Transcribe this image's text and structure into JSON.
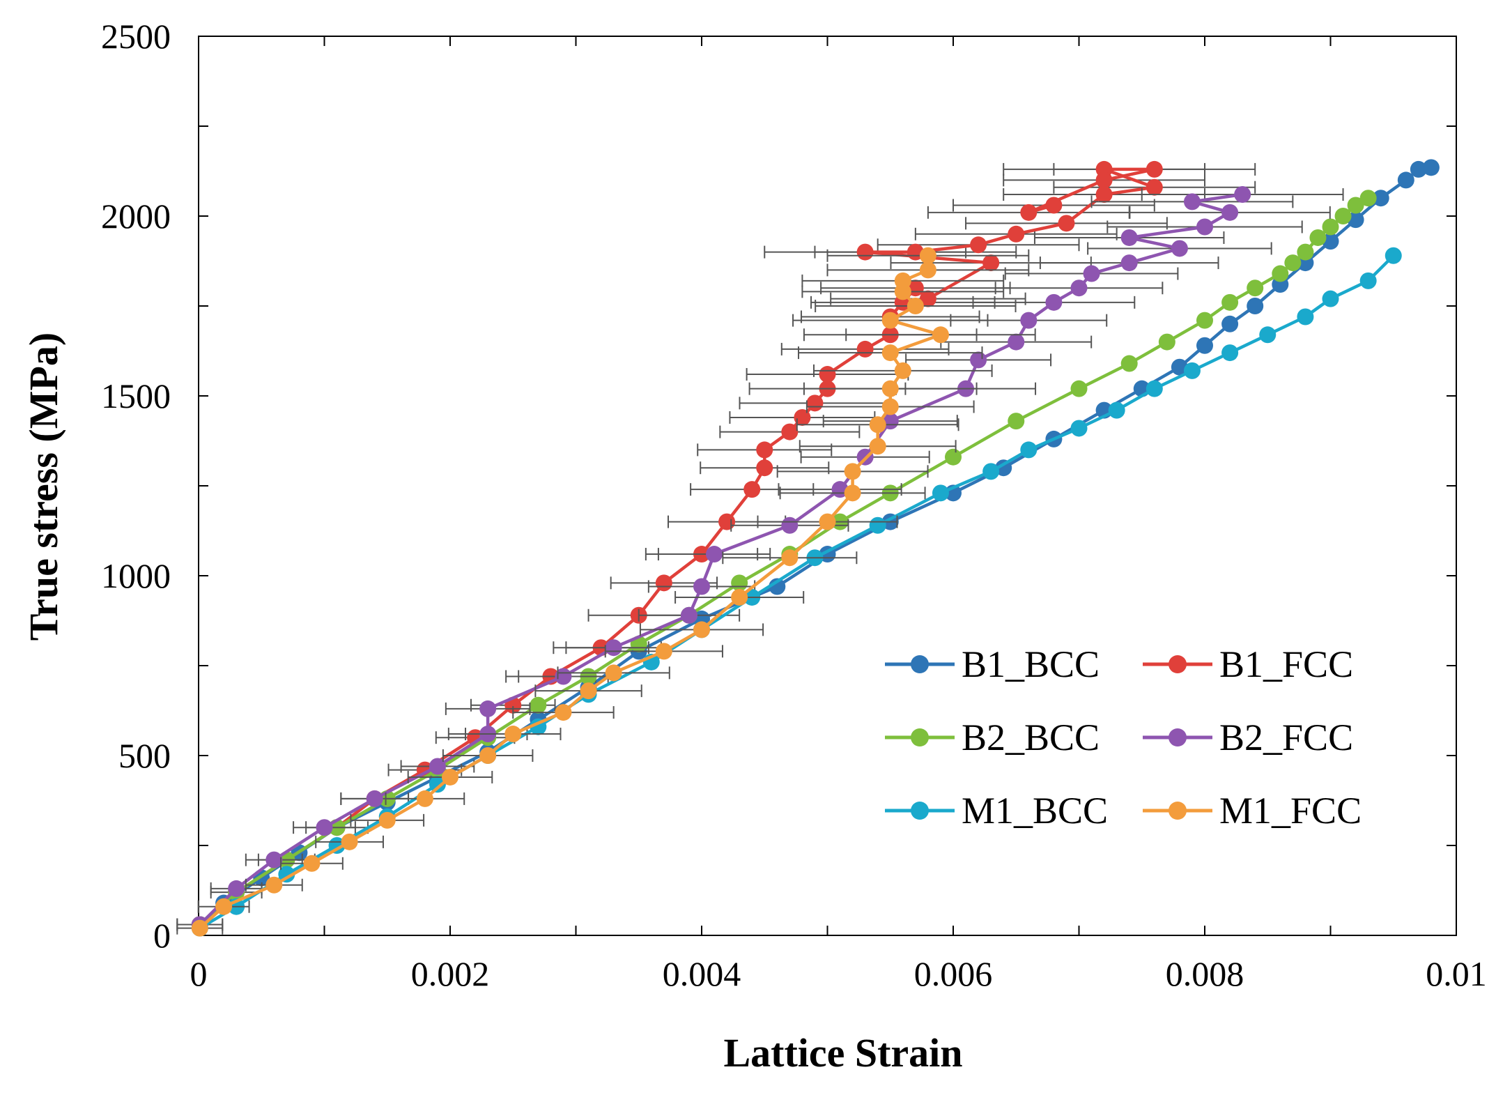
{
  "chart_data": {
    "type": "scatter",
    "title": "",
    "xlabel": "Lattice Strain",
    "ylabel": "True stress (MPa)",
    "xlim": [
      0,
      0.01
    ],
    "ylim": [
      0,
      2500
    ],
    "xticks": [
      0,
      0.002,
      0.004,
      0.006,
      0.008,
      0.01
    ],
    "xtick_labels": [
      "0",
      "0.002",
      "0.004",
      "0.006",
      "0.008",
      "0.01"
    ],
    "yticks": [
      0,
      500,
      1000,
      1500,
      2000,
      2500
    ],
    "ytick_labels": [
      "0",
      "500",
      "1000",
      "1500",
      "2000",
      "2500"
    ],
    "grid": false,
    "legend_position": "center-right",
    "series": [
      {
        "name": "B1_BCC",
        "color": "#2E75B6",
        "error_bars": false,
        "x": [
          1e-05,
          0.0002,
          0.0005,
          0.0008,
          0.0011,
          0.0015,
          0.0019,
          0.0023,
          0.0027,
          0.0031,
          0.0035,
          0.004,
          0.0046,
          0.005,
          0.0055,
          0.006,
          0.0064,
          0.0068,
          0.0072,
          0.0075,
          0.0078,
          0.008,
          0.0082,
          0.0084,
          0.0086,
          0.0088,
          0.009,
          0.0092,
          0.0094,
          0.0096,
          0.0097,
          0.0098
        ],
        "y": [
          30,
          90,
          160,
          230,
          300,
          370,
          440,
          510,
          600,
          690,
          790,
          880,
          970,
          1060,
          1150,
          1230,
          1300,
          1380,
          1460,
          1520,
          1580,
          1640,
          1700,
          1750,
          1810,
          1870,
          1930,
          1990,
          2050,
          2100,
          2130,
          2135
        ]
      },
      {
        "name": "B1_FCC",
        "color": "#E0403A",
        "error_bars": true,
        "x": [
          1e-05,
          0.0003,
          0.0007,
          0.0011,
          0.0014,
          0.0018,
          0.0022,
          0.0025,
          0.0028,
          0.0032,
          0.0035,
          0.0037,
          0.004,
          0.0042,
          0.0044,
          0.0045,
          0.0045,
          0.0047,
          0.0048,
          0.0049,
          0.005,
          0.005,
          0.0053,
          0.0055,
          0.0055,
          0.0056,
          0.0057,
          0.0058,
          0.0063,
          0.0053,
          0.0057,
          0.0062,
          0.0065,
          0.0069,
          0.0072,
          0.0076,
          0.0072,
          0.0076,
          0.0072,
          0.0066,
          0.0068
        ],
        "y": [
          30,
          120,
          210,
          300,
          380,
          460,
          550,
          640,
          720,
          800,
          890,
          980,
          1060,
          1150,
          1240,
          1300,
          1350,
          1400,
          1440,
          1480,
          1520,
          1560,
          1630,
          1670,
          1720,
          1760,
          1800,
          1770,
          1870,
          1900,
          1900,
          1920,
          1950,
          1980,
          2060,
          2080,
          2130,
          2130,
          2100,
          2010,
          2030
        ]
      },
      {
        "name": "B2_BCC",
        "color": "#7EBF3C",
        "error_bars": false,
        "x": [
          1e-05,
          0.0003,
          0.0007,
          0.0011,
          0.0015,
          0.0019,
          0.0023,
          0.0027,
          0.0031,
          0.0035,
          0.0039,
          0.0043,
          0.0047,
          0.0051,
          0.0055,
          0.006,
          0.0065,
          0.007,
          0.0074,
          0.0077,
          0.008,
          0.0082,
          0.0084,
          0.0086,
          0.0087,
          0.0088,
          0.0089,
          0.009,
          0.0091,
          0.0092,
          0.0093
        ],
        "y": [
          30,
          120,
          210,
          300,
          380,
          460,
          550,
          640,
          720,
          810,
          890,
          980,
          1060,
          1150,
          1230,
          1330,
          1430,
          1520,
          1590,
          1650,
          1710,
          1760,
          1800,
          1840,
          1870,
          1900,
          1940,
          1970,
          2000,
          2030,
          2050
        ]
      },
      {
        "name": "B2_FCC",
        "color": "#8E55B0",
        "error_bars": true,
        "x": [
          1e-05,
          0.0003,
          0.0006,
          0.001,
          0.0014,
          0.0019,
          0.0023,
          0.0023,
          0.0029,
          0.0033,
          0.0039,
          0.004,
          0.0041,
          0.0047,
          0.0051,
          0.0053,
          0.0055,
          0.0061,
          0.0062,
          0.0065,
          0.0066,
          0.0068,
          0.007,
          0.0071,
          0.0074,
          0.0078,
          0.0074,
          0.008,
          0.0082,
          0.0079,
          0.0083
        ],
        "y": [
          30,
          130,
          210,
          300,
          380,
          470,
          560,
          630,
          720,
          800,
          890,
          970,
          1060,
          1140,
          1240,
          1330,
          1430,
          1520,
          1600,
          1650,
          1710,
          1760,
          1800,
          1840,
          1870,
          1910,
          1940,
          1970,
          2010,
          2040,
          2060
        ]
      },
      {
        "name": "M1_BCC",
        "color": "#1AA9CC",
        "error_bars": false,
        "x": [
          1e-05,
          0.0003,
          0.0007,
          0.0011,
          0.0015,
          0.0019,
          0.0023,
          0.0027,
          0.0031,
          0.0036,
          0.004,
          0.0044,
          0.0049,
          0.0054,
          0.0059,
          0.0063,
          0.0066,
          0.007,
          0.0073,
          0.0076,
          0.0079,
          0.0082,
          0.0085,
          0.0088,
          0.009,
          0.0093,
          0.0095
        ],
        "y": [
          20,
          80,
          170,
          250,
          330,
          420,
          500,
          580,
          670,
          760,
          850,
          940,
          1050,
          1140,
          1230,
          1290,
          1350,
          1410,
          1460,
          1520,
          1570,
          1620,
          1670,
          1720,
          1770,
          1820,
          1890
        ]
      },
      {
        "name": "M1_FCC",
        "color": "#F39C3C",
        "error_bars": true,
        "x": [
          1e-05,
          0.0002,
          0.0006,
          0.0009,
          0.0012,
          0.0015,
          0.0018,
          0.002,
          0.0023,
          0.0025,
          0.0029,
          0.0031,
          0.0033,
          0.0037,
          0.004,
          0.0043,
          0.0047,
          0.005,
          0.0052,
          0.0052,
          0.0054,
          0.0054,
          0.0055,
          0.0055,
          0.0056,
          0.0055,
          0.0059,
          0.0055,
          0.0057,
          0.0056,
          0.0056,
          0.0058,
          0.0058
        ],
        "y": [
          20,
          80,
          140,
          200,
          260,
          320,
          380,
          440,
          500,
          560,
          620,
          680,
          730,
          790,
          850,
          940,
          1050,
          1150,
          1230,
          1290,
          1360,
          1420,
          1470,
          1520,
          1570,
          1620,
          1670,
          1710,
          1750,
          1790,
          1820,
          1850,
          1890
        ]
      }
    ]
  }
}
